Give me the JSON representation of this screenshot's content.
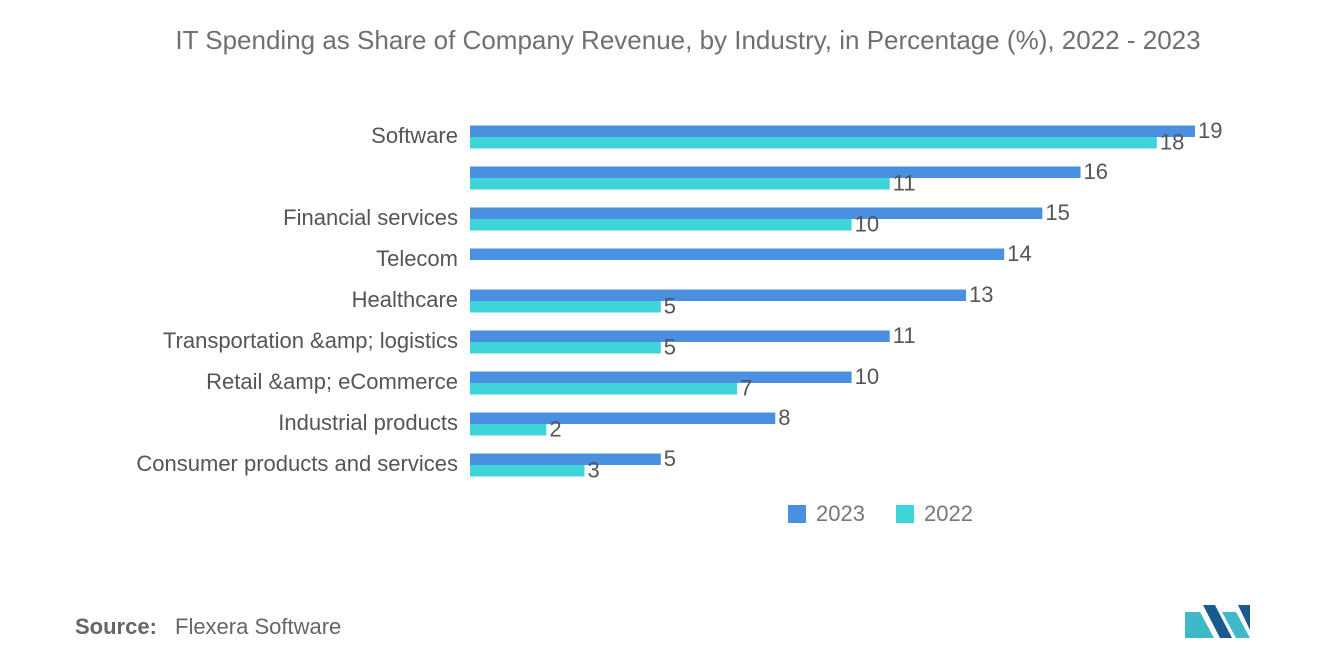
{
  "chart_data": {
    "type": "bar",
    "orientation": "horizontal",
    "title": "IT Spending as Share of Company Revenue, by Industry, in Percentage (%), 2022 - 2023",
    "categories": [
      "Software",
      null,
      "Financial services",
      "Telecom",
      "Healthcare",
      "Transportation &amp; logistics",
      "Retail &amp; eCommerce",
      "Industrial products",
      "Consumer products and services"
    ],
    "series": [
      {
        "name": "2023",
        "color": "#4a8fe0",
        "values": [
          19,
          16,
          15,
          14,
          13,
          11,
          10,
          8,
          5
        ]
      },
      {
        "name": "2022",
        "color": "#3fd3da",
        "values": [
          18,
          11,
          10,
          null,
          5,
          5,
          7,
          2,
          3
        ]
      }
    ],
    "legend": "bottom",
    "source_label": "Source:",
    "source": "Flexera Software"
  }
}
